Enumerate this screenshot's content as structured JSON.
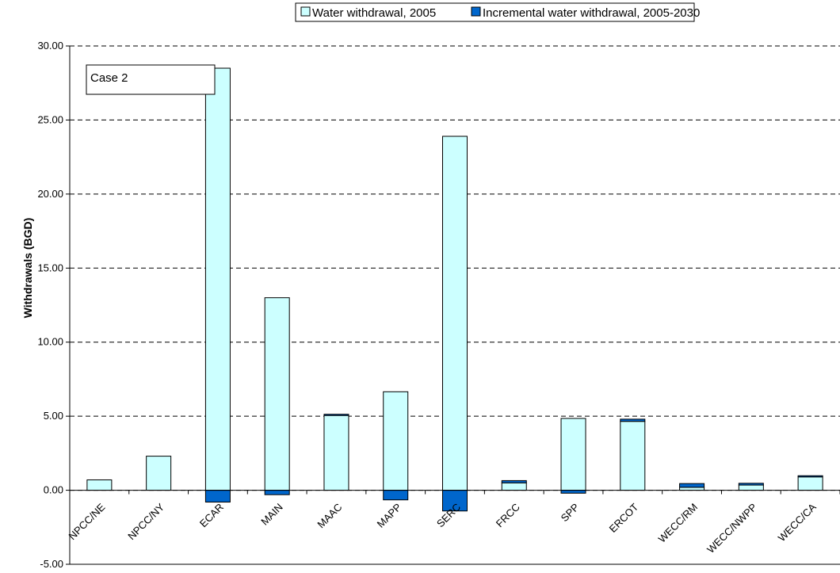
{
  "chart_data": {
    "type": "bar",
    "stacked": true,
    "categories": [
      "NPCC/NE",
      "NPCC/NY",
      "ECAR",
      "MAIN",
      "MAAC",
      "MAPP",
      "SERC",
      "FRCC",
      "SPP",
      "ERCOT",
      "WECC/RM",
      "WECC/NWPP",
      "WECC/CA"
    ],
    "series": [
      {
        "name": "Water withdrawal, 2005",
        "color": "#ccffff",
        "values": [
          0.7,
          2.3,
          28.5,
          13.0,
          5.05,
          6.65,
          23.9,
          0.5,
          4.85,
          4.65,
          0.2,
          0.35,
          0.9
        ]
      },
      {
        "name": "Incremental water withdrawal, 2005-2030",
        "color": "#0066cc",
        "values": [
          0.0,
          0.0,
          -0.8,
          -0.3,
          0.08,
          -0.65,
          -1.4,
          0.15,
          -0.2,
          0.15,
          0.25,
          0.12,
          0.08
        ]
      }
    ],
    "ylabel": "Withdrawals (BGD)",
    "xlabel": "",
    "ylim": [
      -5.0,
      30.0
    ],
    "yticks": [
      "30.00",
      "25.00",
      "20.00",
      "15.00",
      "10.00",
      "5.00",
      "0.00",
      "-5.00"
    ],
    "grid": true,
    "legend_position": "top",
    "annotation": "Case 2"
  }
}
